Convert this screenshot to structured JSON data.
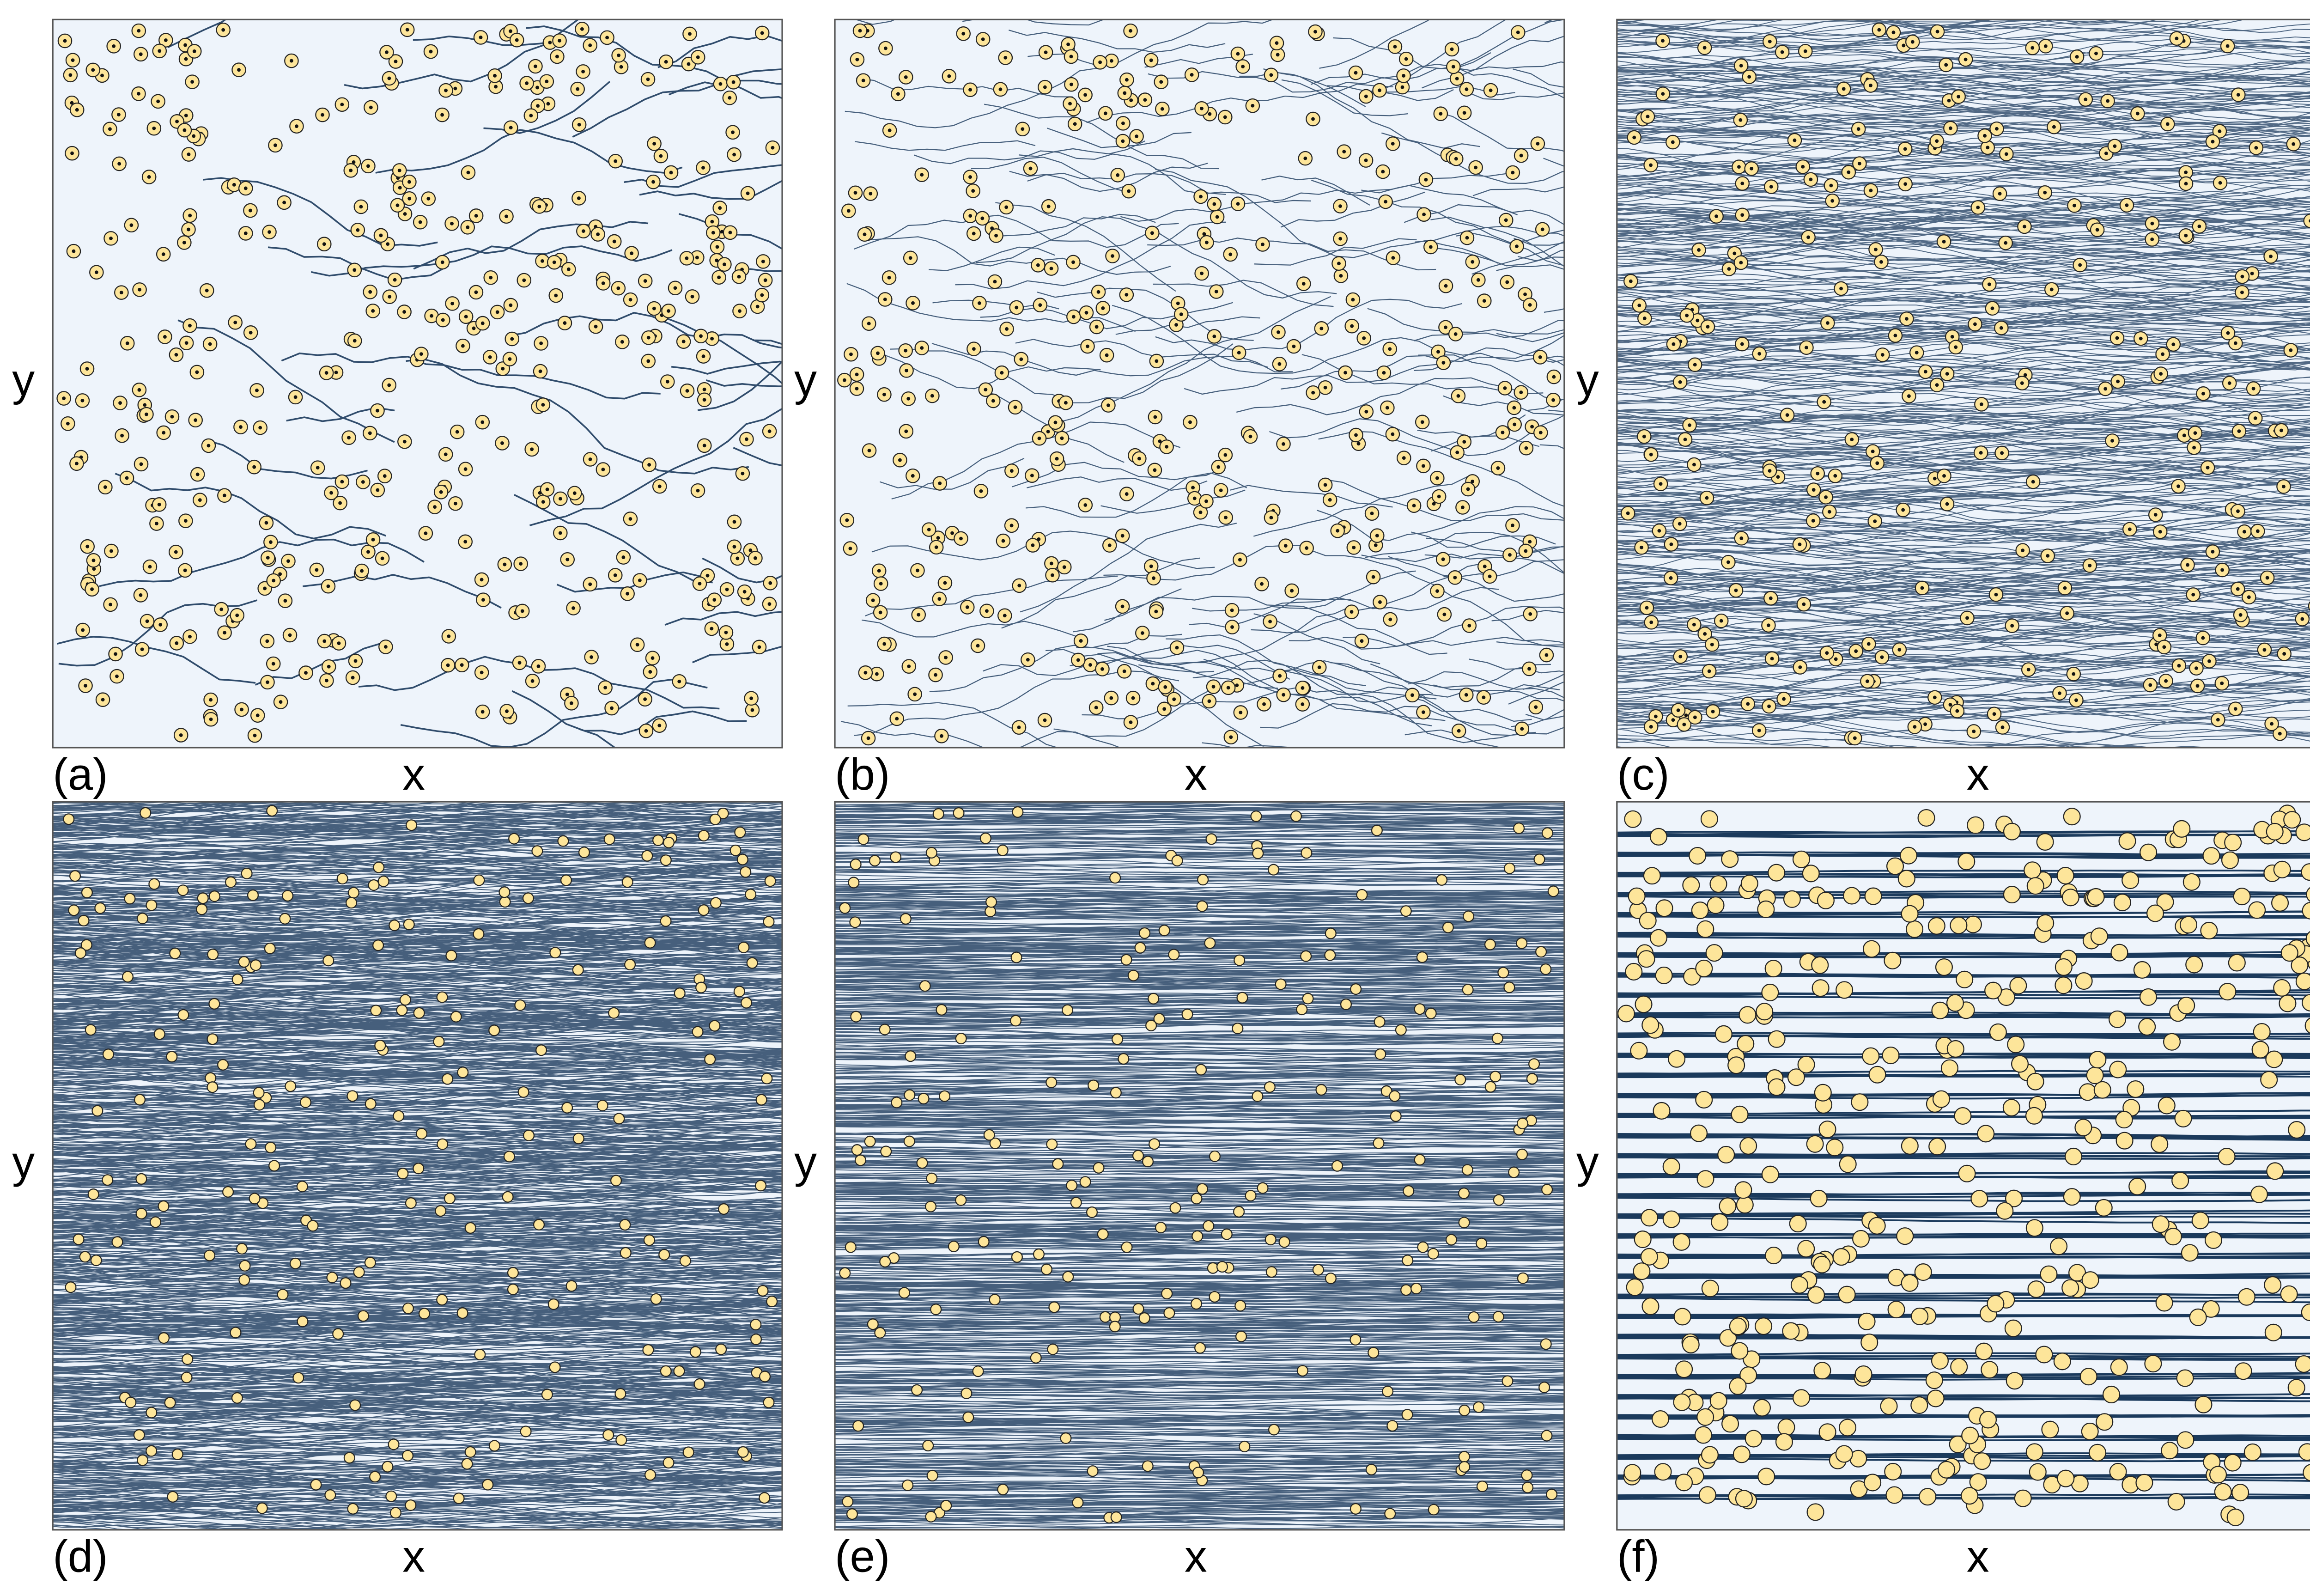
{
  "panels": [
    {
      "label": "(a)",
      "x_label": "x",
      "y_label": "y"
    },
    {
      "label": "(b)",
      "x_label": "x",
      "y_label": "y"
    },
    {
      "label": "(c)",
      "x_label": "x",
      "y_label": "y"
    },
    {
      "label": "(d)",
      "x_label": "x",
      "y_label": "y"
    },
    {
      "label": "(e)",
      "x_label": "x",
      "y_label": "y"
    },
    {
      "label": "(f)",
      "x_label": "x",
      "y_label": "y"
    }
  ]
}
